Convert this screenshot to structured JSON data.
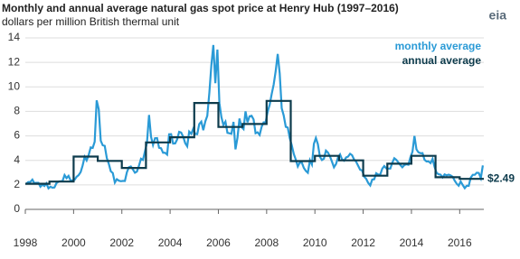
{
  "chart_data": {
    "type": "line",
    "title": "Monthly and annual average natural gas spot price at Henry Hub (1997–2016)",
    "subtitle": "dollars per million British thermal unit",
    "logo": "eia",
    "x": [
      1998,
      1999,
      2000,
      2001,
      2002,
      2003,
      2004,
      2005,
      2006,
      2007,
      2008,
      2009,
      2010,
      2011,
      2012,
      2013,
      2014,
      2015,
      2016
    ],
    "xlim": [
      1998,
      2017
    ],
    "xticks": [
      1998,
      2000,
      2002,
      2004,
      2006,
      2008,
      2010,
      2012,
      2014,
      2016
    ],
    "ylim": [
      0,
      14
    ],
    "yticks": [
      0,
      2,
      4,
      6,
      8,
      10,
      12,
      14
    ],
    "grid": true,
    "legend": "top-right",
    "series": [
      {
        "name": "monthly average",
        "color": "#2a9ad6",
        "style": "monthly",
        "values": [
          [
            2.09,
            2.23,
            2.24,
            2.43,
            2.14,
            2.17,
            2.17,
            1.85,
            2.02,
            1.91,
            2.12,
            1.72
          ],
          [
            1.85,
            1.77,
            1.79,
            2.15,
            2.26,
            2.3,
            2.31,
            2.8,
            2.55,
            2.73,
            2.37,
            2.36
          ],
          [
            2.42,
            2.66,
            2.79,
            3.04,
            3.59,
            4.29,
            3.99,
            4.43,
            5.06,
            5.02,
            5.52,
            8.9
          ],
          [
            8.17,
            5.61,
            5.23,
            5.19,
            4.19,
            3.72,
            3.11,
            2.97,
            2.19,
            2.46,
            2.34,
            2.3
          ],
          [
            2.32,
            2.32,
            3.03,
            3.43,
            3.5,
            3.26,
            2.99,
            3.09,
            3.55,
            4.13,
            4.04,
            4.74
          ],
          [
            5.43,
            7.71,
            5.93,
            5.26,
            5.81,
            5.82,
            5.03,
            4.99,
            4.62,
            4.63,
            4.47,
            6.13
          ],
          [
            6.14,
            5.37,
            5.39,
            5.71,
            6.33,
            6.27,
            5.93,
            5.41,
            5.15,
            6.35,
            6.17,
            6.58
          ],
          [
            6.15,
            6.14,
            6.96,
            7.16,
            6.47,
            7.18,
            7.63,
            9.53,
            11.75,
            13.42,
            10.3,
            13.05
          ],
          [
            8.69,
            7.54,
            6.89,
            7.16,
            6.25,
            6.21,
            6.17,
            7.14,
            4.9,
            5.85,
            7.41,
            6.73
          ],
          [
            6.55,
            8.0,
            7.11,
            7.6,
            7.64,
            7.35,
            6.22,
            6.29,
            6.08,
            6.74,
            7.1,
            7.11
          ],
          [
            7.99,
            8.54,
            9.41,
            10.18,
            11.27,
            12.69,
            11.09,
            8.26,
            7.67,
            6.74,
            6.68,
            5.82
          ],
          [
            5.24,
            4.52,
            4.06,
            3.5,
            3.83,
            3.8,
            3.38,
            3.14,
            2.99,
            4.01,
            3.66,
            5.35
          ],
          [
            5.83,
            5.32,
            4.29,
            4.03,
            4.14,
            4.8,
            4.63,
            4.32,
            3.89,
            3.43,
            3.71,
            4.25
          ],
          [
            4.49,
            4.09,
            3.97,
            4.24,
            4.31,
            4.54,
            4.42,
            4.06,
            3.9,
            3.57,
            3.24,
            3.17
          ],
          [
            2.67,
            2.5,
            2.17,
            1.95,
            2.43,
            2.46,
            2.95,
            2.84,
            2.85,
            3.32,
            3.54,
            3.34
          ],
          [
            3.33,
            3.33,
            3.81,
            4.17,
            4.04,
            3.83,
            3.62,
            3.43,
            3.62,
            3.68,
            3.64,
            4.24
          ],
          [
            4.71,
            6.0,
            4.9,
            4.66,
            4.58,
            4.59,
            4.05,
            3.91,
            3.92,
            3.78,
            4.12,
            3.48
          ],
          [
            2.99,
            2.87,
            2.83,
            2.61,
            2.85,
            2.78,
            2.84,
            2.77,
            2.66,
            2.34,
            2.09,
            1.93
          ],
          [
            2.28,
            1.99,
            1.73,
            1.92,
            1.92,
            2.59,
            2.82,
            2.82,
            2.99,
            2.98,
            2.55,
            3.59
          ]
        ]
      },
      {
        "name": "annual average",
        "color": "#0d3b4c",
        "style": "annual",
        "values": [
          2.09,
          2.27,
          4.31,
          3.96,
          3.38,
          5.47,
          5.89,
          8.69,
          6.73,
          6.97,
          8.86,
          3.94,
          4.37,
          4.0,
          2.75,
          3.73,
          4.37,
          2.62,
          2.49
        ],
        "value_labels": [
          null,
          null,
          null,
          null,
          null,
          null,
          null,
          null,
          null,
          null,
          null,
          null,
          null,
          null,
          null,
          null,
          null,
          null,
          "$2.49"
        ]
      }
    ]
  }
}
